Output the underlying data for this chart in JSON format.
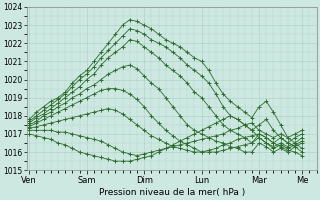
{
  "background_color": "#cce8e0",
  "plot_bg_color": "#cce8e0",
  "grid_color": "#aacfc8",
  "line_color": "#2d6e2d",
  "title": "Pression niveau de la mer( hPa )",
  "ylim": [
    1015,
    1024
  ],
  "ytick_labels": [
    "1015",
    "1016",
    "1017",
    "1018",
    "1019",
    "1020",
    "1021",
    "1022",
    "1023",
    "1024"
  ],
  "ytick_values": [
    1015,
    1016,
    1017,
    1018,
    1019,
    1020,
    1021,
    1022,
    1023,
    1024
  ],
  "x_day_labels": [
    "Ven",
    "Sam",
    "Dim",
    "Lun",
    "Mar",
    "Me"
  ],
  "x_day_positions": [
    0,
    48,
    96,
    144,
    192,
    228
  ],
  "xlim": [
    -2,
    240
  ],
  "lines": [
    [
      0,
      1017.8,
      6,
      1018.2,
      12,
      1018.5,
      18,
      1018.8,
      24,
      1019.0,
      30,
      1019.3,
      36,
      1019.8,
      42,
      1020.2,
      48,
      1020.5,
      54,
      1021.0,
      60,
      1021.5,
      66,
      1022.0,
      72,
      1022.5,
      78,
      1023.0,
      84,
      1023.3,
      90,
      1023.2,
      96,
      1023.0,
      102,
      1022.8,
      108,
      1022.5,
      114,
      1022.2,
      120,
      1022.0,
      126,
      1021.8,
      132,
      1021.5,
      138,
      1021.2,
      144,
      1021.0,
      150,
      1020.5,
      156,
      1019.8,
      162,
      1019.2,
      168,
      1018.8,
      174,
      1018.5,
      180,
      1018.2,
      186,
      1017.9,
      192,
      1018.5,
      198,
      1018.8,
      204,
      1018.2,
      210,
      1017.5,
      216,
      1016.8,
      222,
      1016.5,
      228,
      1016.2
    ],
    [
      0,
      1017.7,
      6,
      1018.0,
      12,
      1018.3,
      18,
      1018.6,
      24,
      1018.9,
      30,
      1019.2,
      36,
      1019.6,
      42,
      1020.0,
      48,
      1020.3,
      54,
      1020.7,
      60,
      1021.2,
      66,
      1021.6,
      72,
      1022.0,
      78,
      1022.4,
      84,
      1022.8,
      90,
      1022.7,
      96,
      1022.5,
      102,
      1022.2,
      108,
      1022.0,
      114,
      1021.8,
      120,
      1021.5,
      126,
      1021.2,
      132,
      1020.8,
      138,
      1020.5,
      144,
      1020.2,
      150,
      1019.8,
      156,
      1019.2,
      162,
      1018.5,
      168,
      1018.0,
      174,
      1017.8,
      180,
      1017.5,
      186,
      1017.2,
      192,
      1017.5,
      198,
      1017.8,
      204,
      1017.2,
      210,
      1016.8,
      216,
      1016.5,
      222,
      1016.3,
      228,
      1016.0
    ],
    [
      0,
      1017.6,
      6,
      1017.9,
      12,
      1018.1,
      18,
      1018.4,
      24,
      1018.7,
      30,
      1019.0,
      36,
      1019.3,
      42,
      1019.6,
      48,
      1020.0,
      54,
      1020.3,
      60,
      1020.8,
      66,
      1021.2,
      72,
      1021.5,
      78,
      1021.8,
      84,
      1022.2,
      90,
      1022.1,
      96,
      1021.8,
      102,
      1021.5,
      108,
      1021.2,
      114,
      1020.8,
      120,
      1020.5,
      126,
      1020.2,
      132,
      1019.8,
      138,
      1019.3,
      144,
      1019.0,
      150,
      1018.5,
      156,
      1018.0,
      162,
      1017.5,
      168,
      1017.2,
      174,
      1017.0,
      180,
      1016.8,
      186,
      1016.5,
      192,
      1017.0,
      198,
      1016.8,
      204,
      1016.5,
      210,
      1016.3,
      216,
      1016.1,
      222,
      1016.0,
      228,
      1015.8
    ],
    [
      0,
      1017.5,
      6,
      1017.7,
      12,
      1018.0,
      18,
      1018.2,
      24,
      1018.5,
      30,
      1018.7,
      36,
      1019.0,
      42,
      1019.2,
      48,
      1019.5,
      54,
      1019.7,
      60,
      1020.0,
      66,
      1020.3,
      72,
      1020.5,
      78,
      1020.7,
      84,
      1020.8,
      90,
      1020.6,
      96,
      1020.2,
      102,
      1019.8,
      108,
      1019.5,
      114,
      1019.0,
      120,
      1018.5,
      126,
      1018.0,
      132,
      1017.5,
      138,
      1017.2,
      144,
      1017.0,
      150,
      1016.8,
      156,
      1016.6,
      162,
      1016.5,
      168,
      1016.3,
      174,
      1016.2,
      180,
      1016.0,
      186,
      1016.0,
      192,
      1016.5,
      198,
      1016.3,
      204,
      1016.0,
      210,
      1016.2,
      216,
      1016.0,
      222,
      1016.3,
      228,
      1016.5
    ],
    [
      0,
      1017.4,
      6,
      1017.6,
      12,
      1017.8,
      18,
      1018.0,
      24,
      1018.2,
      30,
      1018.4,
      36,
      1018.6,
      42,
      1018.8,
      48,
      1019.0,
      54,
      1019.2,
      60,
      1019.4,
      66,
      1019.5,
      72,
      1019.5,
      78,
      1019.4,
      84,
      1019.2,
      90,
      1018.9,
      96,
      1018.5,
      102,
      1018.0,
      108,
      1017.6,
      114,
      1017.2,
      120,
      1016.9,
      126,
      1016.6,
      132,
      1016.4,
      138,
      1016.2,
      144,
      1016.0,
      150,
      1016.0,
      156,
      1016.0,
      162,
      1016.1,
      168,
      1016.2,
      174,
      1016.3,
      180,
      1016.4,
      186,
      1016.5,
      192,
      1016.8,
      198,
      1016.5,
      204,
      1016.3,
      210,
      1016.5,
      216,
      1016.3,
      222,
      1016.5,
      228,
      1016.8
    ],
    [
      0,
      1017.3,
      6,
      1017.4,
      12,
      1017.5,
      18,
      1017.6,
      24,
      1017.7,
      30,
      1017.8,
      36,
      1017.9,
      42,
      1018.0,
      48,
      1018.1,
      54,
      1018.2,
      60,
      1018.3,
      66,
      1018.4,
      72,
      1018.3,
      78,
      1018.1,
      84,
      1017.8,
      90,
      1017.5,
      96,
      1017.2,
      102,
      1016.9,
      108,
      1016.7,
      114,
      1016.5,
      120,
      1016.3,
      126,
      1016.2,
      132,
      1016.1,
      138,
      1016.0,
      144,
      1016.0,
      150,
      1016.1,
      156,
      1016.2,
      162,
      1016.4,
      168,
      1016.5,
      174,
      1016.7,
      180,
      1016.8,
      186,
      1016.9,
      192,
      1017.0,
      198,
      1016.8,
      204,
      1016.5,
      210,
      1016.8,
      216,
      1016.5,
      222,
      1016.8,
      228,
      1017.0
    ],
    [
      0,
      1017.2,
      6,
      1017.2,
      12,
      1017.2,
      18,
      1017.2,
      24,
      1017.1,
      30,
      1017.1,
      36,
      1017.0,
      42,
      1016.9,
      48,
      1016.8,
      54,
      1016.7,
      60,
      1016.6,
      66,
      1016.4,
      72,
      1016.2,
      78,
      1016.0,
      84,
      1015.9,
      90,
      1015.8,
      96,
      1015.9,
      102,
      1016.0,
      108,
      1016.1,
      114,
      1016.2,
      120,
      1016.3,
      126,
      1016.4,
      132,
      1016.5,
      138,
      1016.6,
      144,
      1016.7,
      150,
      1016.8,
      156,
      1016.9,
      162,
      1017.0,
      168,
      1017.2,
      174,
      1017.3,
      180,
      1017.5,
      186,
      1017.6,
      192,
      1017.2,
      198,
      1017.0,
      204,
      1016.8,
      210,
      1017.0,
      216,
      1016.8,
      222,
      1017.0,
      228,
      1017.2
    ],
    [
      0,
      1017.0,
      6,
      1016.9,
      12,
      1016.8,
      18,
      1016.7,
      24,
      1016.5,
      30,
      1016.4,
      36,
      1016.2,
      42,
      1016.0,
      48,
      1015.9,
      54,
      1015.8,
      60,
      1015.7,
      66,
      1015.6,
      72,
      1015.5,
      78,
      1015.5,
      84,
      1015.5,
      90,
      1015.6,
      96,
      1015.7,
      102,
      1015.8,
      108,
      1016.0,
      114,
      1016.2,
      120,
      1016.4,
      126,
      1016.6,
      132,
      1016.8,
      138,
      1017.0,
      144,
      1017.2,
      150,
      1017.4,
      156,
      1017.6,
      162,
      1017.8,
      168,
      1018.0,
      174,
      1017.8,
      180,
      1017.5,
      186,
      1017.2,
      192,
      1016.8,
      198,
      1016.5,
      204,
      1016.2,
      210,
      1016.4,
      216,
      1016.2,
      222,
      1016.4,
      228,
      1016.6
    ]
  ]
}
